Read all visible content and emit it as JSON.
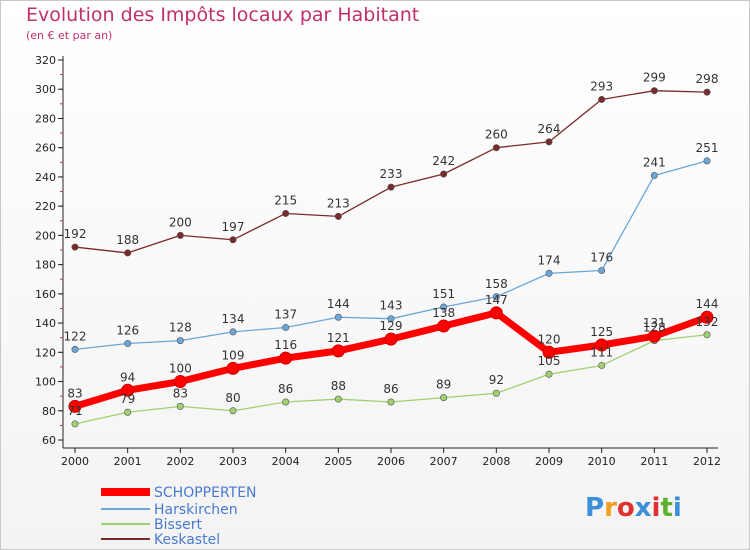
{
  "title": "Evolution des Impôts locaux par Habitant",
  "subtitle": "(en € et par an)",
  "logo_text": "Proxiti",
  "chart_data": {
    "type": "line",
    "x": [
      "2000",
      "2001",
      "2002",
      "2003",
      "2004",
      "2005",
      "2006",
      "2007",
      "2008",
      "2009",
      "2010",
      "2011",
      "2012"
    ],
    "ylim": [
      60,
      320
    ],
    "yticks": [
      60,
      80,
      100,
      120,
      140,
      160,
      180,
      200,
      220,
      240,
      260,
      280,
      300,
      320
    ],
    "grid": false,
    "legend_position": "bottom-left",
    "series": [
      {
        "name": "SCHOPPERTEN",
        "color": "#ff0000",
        "values": [
          83,
          94,
          100,
          109,
          116,
          121,
          129,
          138,
          147,
          120,
          125,
          131,
          144
        ],
        "labels": [
          "83",
          "94",
          "100",
          "109",
          "116",
          "121",
          "129",
          "138",
          "147",
          "120",
          "125",
          "131",
          "144"
        ]
      },
      {
        "name": "Harskirchen",
        "color": "#6aa6d8",
        "values": [
          122,
          126,
          128,
          134,
          137,
          144,
          143,
          151,
          158,
          174,
          176,
          241,
          251
        ],
        "labels": [
          "122",
          "126",
          "128",
          "134",
          "137",
          "144",
          "143",
          "151",
          "158",
          "174",
          "176",
          "241",
          "251"
        ]
      },
      {
        "name": "Bissert",
        "color": "#a0d070",
        "values": [
          71,
          79,
          83,
          80,
          86,
          88,
          86,
          89,
          92,
          105,
          111,
          128,
          132
        ],
        "labels": [
          "71",
          "79",
          "83",
          "80",
          "86",
          "88",
          "86",
          "89",
          "92",
          "105",
          "111",
          "128",
          "132"
        ]
      },
      {
        "name": "Keskastel",
        "color": "#7a2a2a",
        "values": [
          192,
          188,
          200,
          197,
          215,
          213,
          233,
          242,
          260,
          264,
          293,
          299,
          298
        ],
        "labels": [
          "192",
          "188",
          "200",
          "197",
          "215",
          "213",
          "233",
          "242",
          "260",
          "264",
          "293",
          "299",
          "298"
        ]
      }
    ]
  }
}
